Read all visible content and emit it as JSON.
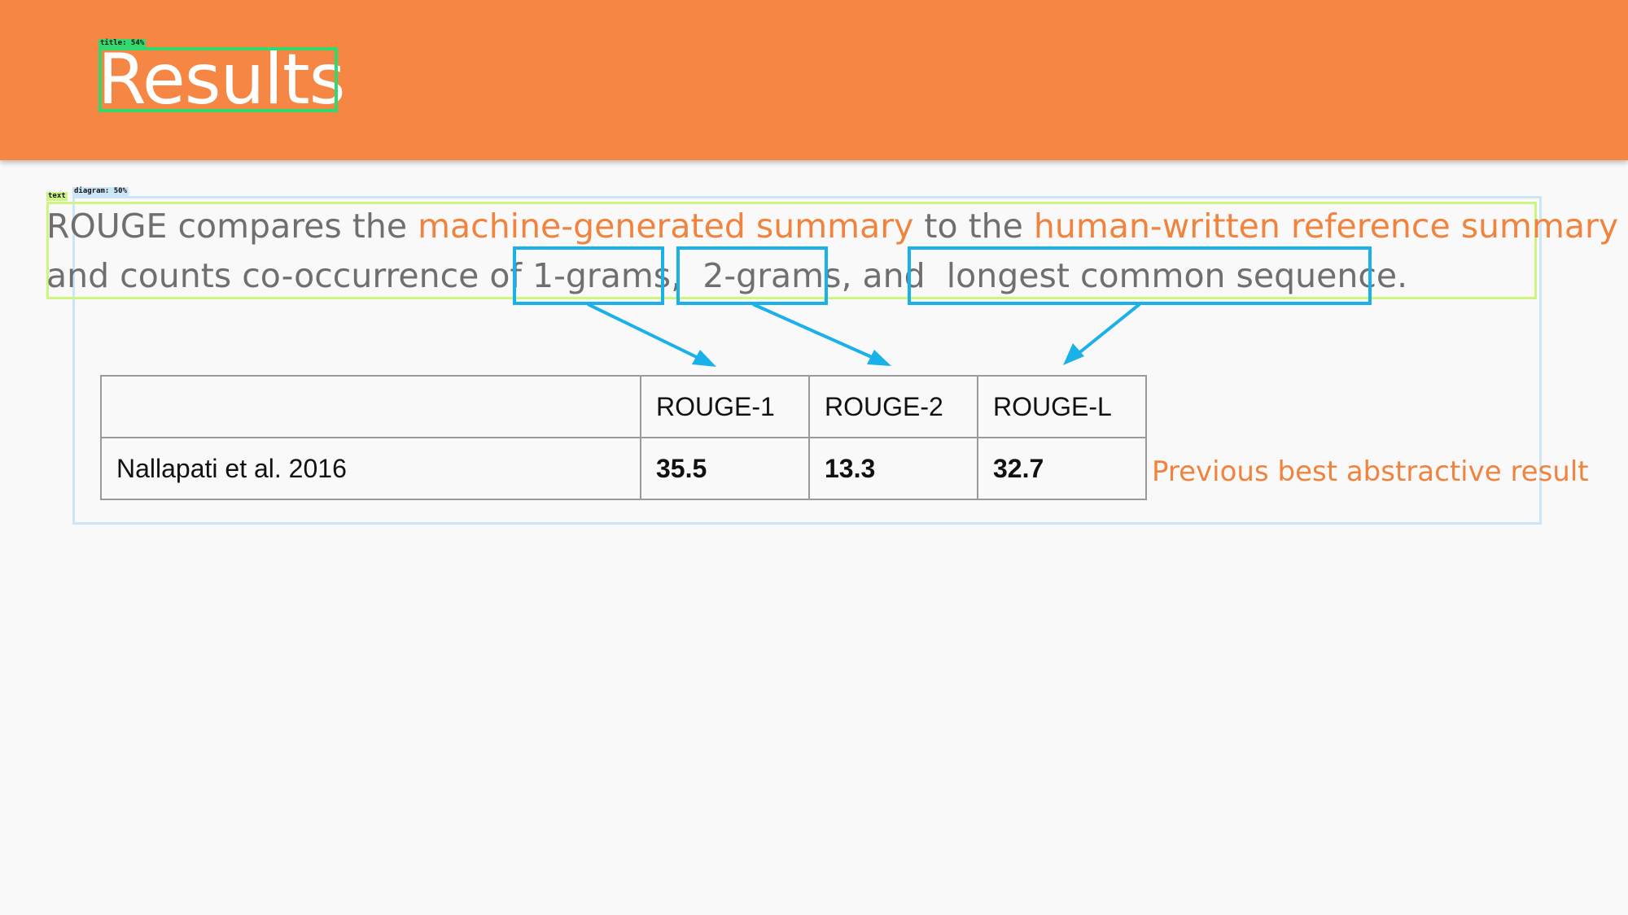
{
  "header": {
    "title": "Results",
    "color": "#f68644"
  },
  "detections": {
    "title_tag": "title: 54%",
    "text_tag": "text",
    "diagram_tag": "diagram: 50%"
  },
  "paragraph": {
    "p1": "ROUGE compares the ",
    "hl1": "machine-generated summary",
    "p2": " to the ",
    "hl2": "human-written reference summary",
    "p3": "and counts co-occurrence of ",
    "t1": "1-grams,",
    "p4": " ",
    "t2": "2-grams,",
    "p5": " and ",
    "t3": "longest common sequence."
  },
  "table": {
    "headers": [
      "",
      "ROUGE-1",
      "ROUGE-2",
      "ROUGE-L"
    ],
    "rows": [
      {
        "label": "Nallapati et al. 2016",
        "rouge1": "35.5",
        "rouge2": "13.3",
        "rougeL": "32.7"
      }
    ]
  },
  "note": "Previous best abstractive result",
  "colors": {
    "accent": "#f0843f",
    "box": "#1ab0e8",
    "text": "#6f6f6f"
  }
}
